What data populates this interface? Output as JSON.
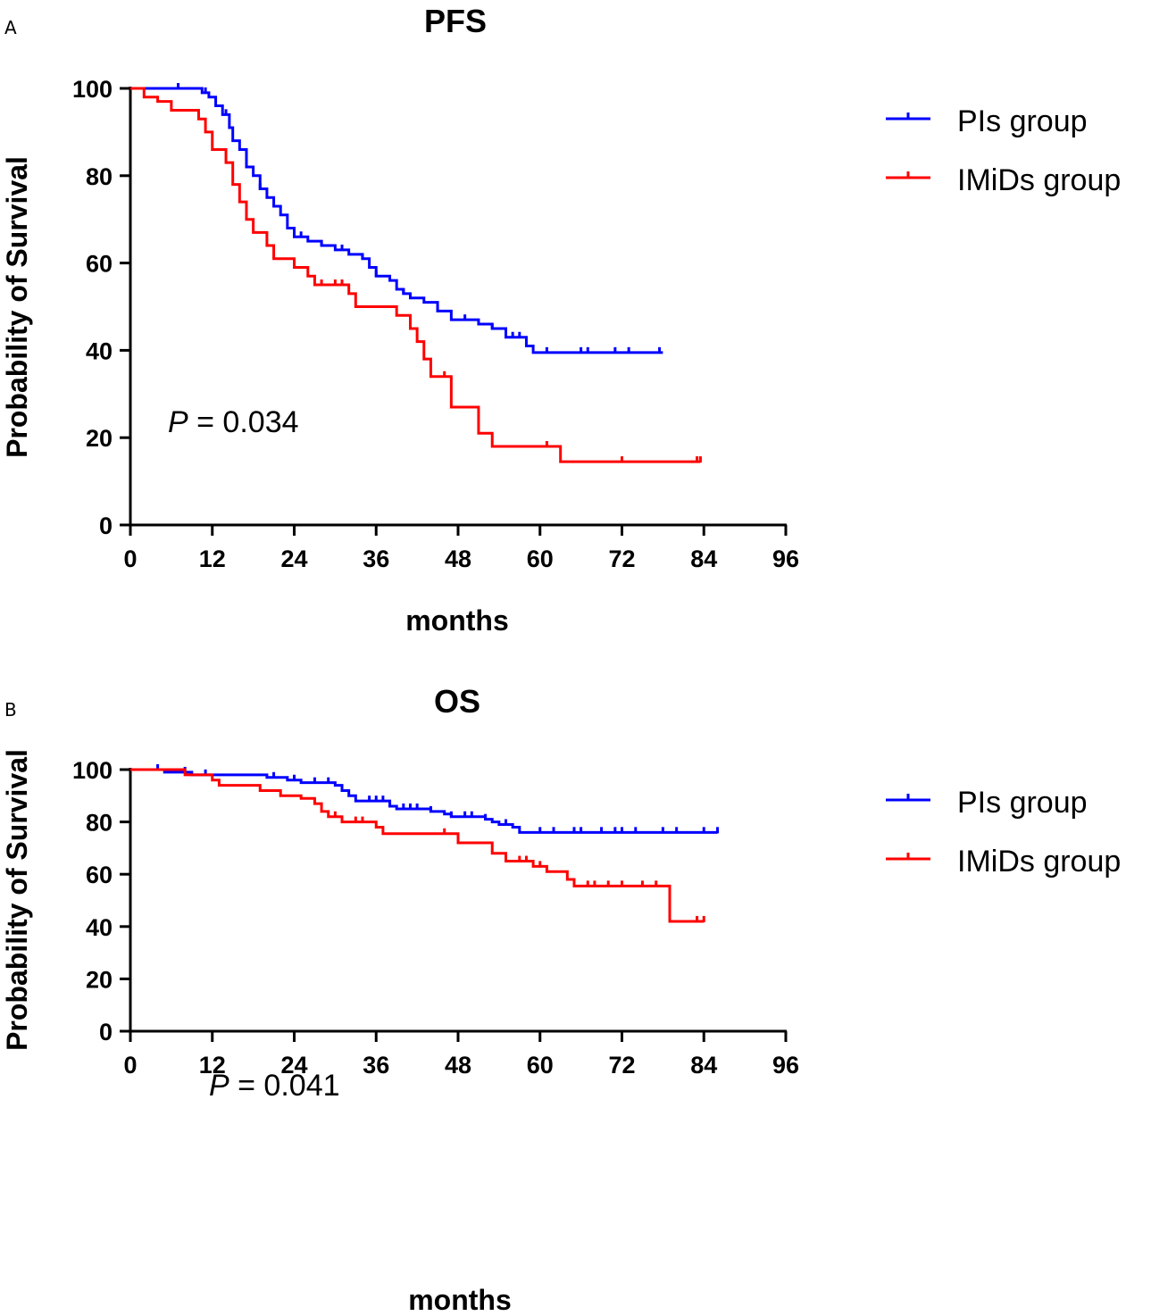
{
  "chart_data": [
    {
      "panel": "A",
      "type": "line",
      "title": "PFS",
      "xlabel": "months",
      "ylabel": "Probability of Survival",
      "xlim": [
        0,
        96
      ],
      "ylim": [
        0,
        100
      ],
      "xticks": [
        0,
        12,
        24,
        36,
        48,
        60,
        72,
        84,
        96
      ],
      "yticks": [
        0,
        20,
        40,
        60,
        80,
        100
      ],
      "annotation": {
        "italic": "P",
        "text": " = 0.034"
      },
      "series": [
        {
          "name": "PIs group",
          "color": "#0000ff",
          "step_points": [
            [
              0,
              100
            ],
            [
              9.5,
              100
            ],
            [
              10.5,
              99
            ],
            [
              11.5,
              98
            ],
            [
              12.5,
              96
            ],
            [
              13.5,
              94
            ],
            [
              14.5,
              91
            ],
            [
              15,
              88
            ],
            [
              16,
              86
            ],
            [
              17,
              82
            ],
            [
              18,
              80
            ],
            [
              19,
              77
            ],
            [
              20,
              75
            ],
            [
              21,
              73
            ],
            [
              22,
              71
            ],
            [
              23,
              68
            ],
            [
              24,
              66
            ],
            [
              26,
              65
            ],
            [
              28,
              64
            ],
            [
              30,
              63
            ],
            [
              32,
              62
            ],
            [
              34,
              61
            ],
            [
              35,
              59
            ],
            [
              36,
              57
            ],
            [
              38,
              56
            ],
            [
              39,
              54
            ],
            [
              40,
              53
            ],
            [
              41,
              52
            ],
            [
              43,
              51
            ],
            [
              45,
              49
            ],
            [
              47,
              47
            ],
            [
              51,
              46
            ],
            [
              53,
              45
            ],
            [
              55,
              43
            ],
            [
              58,
              41
            ],
            [
              59,
              39.5
            ],
            [
              78,
              39.5
            ]
          ],
          "censor_x": [
            7,
            11,
            14,
            19,
            25,
            28,
            31,
            34,
            36,
            40,
            45,
            49,
            53,
            56,
            57,
            61,
            66,
            67,
            71,
            73,
            77.5
          ]
        },
        {
          "name": "IMiDs group",
          "color": "#ff0000",
          "step_points": [
            [
              0,
              100
            ],
            [
              2,
              98
            ],
            [
              4,
              97
            ],
            [
              6,
              95
            ],
            [
              10,
              93
            ],
            [
              11,
              90
            ],
            [
              12,
              86
            ],
            [
              14,
              83
            ],
            [
              15,
              78
            ],
            [
              16,
              74
            ],
            [
              17,
              70
            ],
            [
              18,
              67
            ],
            [
              20,
              64
            ],
            [
              21,
              61
            ],
            [
              24,
              59
            ],
            [
              26,
              57
            ],
            [
              27,
              55
            ],
            [
              32,
              53
            ],
            [
              33,
              50
            ],
            [
              39,
              48
            ],
            [
              41,
              45
            ],
            [
              42,
              42
            ],
            [
              43,
              38
            ],
            [
              44,
              34
            ],
            [
              47,
              27
            ],
            [
              51,
              21
            ],
            [
              53,
              18
            ],
            [
              62,
              18
            ],
            [
              63,
              14.5
            ],
            [
              83.5,
              14.5
            ]
          ],
          "censor_x": [
            28,
            30,
            31,
            46,
            61,
            72,
            83,
            83.5
          ]
        }
      ]
    },
    {
      "panel": "B",
      "type": "line",
      "title": "OS",
      "xlabel": "months",
      "ylabel": "Probability of Survival",
      "xlim": [
        0,
        96
      ],
      "ylim": [
        0,
        100
      ],
      "xticks": [
        0,
        12,
        24,
        36,
        48,
        60,
        72,
        84,
        96
      ],
      "yticks": [
        0,
        20,
        40,
        60,
        80,
        100
      ],
      "annotation": {
        "italic": "P",
        "text": " = 0.041"
      },
      "series": [
        {
          "name": "PIs group",
          "color": "#0000ff",
          "step_points": [
            [
              0,
              100
            ],
            [
              5,
              99
            ],
            [
              9,
              98
            ],
            [
              20,
              97
            ],
            [
              23,
              96
            ],
            [
              25,
              95
            ],
            [
              30,
              94
            ],
            [
              31,
              92
            ],
            [
              32,
              90
            ],
            [
              33,
              88
            ],
            [
              38,
              86
            ],
            [
              39,
              85
            ],
            [
              44,
              84
            ],
            [
              46,
              83
            ],
            [
              47,
              82
            ],
            [
              52,
              81
            ],
            [
              53,
              80
            ],
            [
              54,
              79
            ],
            [
              56,
              78
            ],
            [
              57,
              76
            ],
            [
              86,
              76
            ]
          ],
          "censor_x": [
            4,
            8,
            11,
            21,
            24,
            27,
            29,
            31,
            35,
            36,
            37,
            38,
            40,
            41,
            42,
            44,
            47,
            49,
            50,
            52,
            55,
            60,
            62,
            65,
            66,
            69,
            71,
            72,
            74,
            78,
            80,
            84,
            86
          ]
        },
        {
          "name": "IMiDs group",
          "color": "#ff0000",
          "step_points": [
            [
              0,
              100
            ],
            [
              8,
              98
            ],
            [
              12,
              96
            ],
            [
              13,
              94
            ],
            [
              19,
              92
            ],
            [
              22,
              90
            ],
            [
              25,
              89
            ],
            [
              27,
              87
            ],
            [
              28,
              84
            ],
            [
              29,
              82
            ],
            [
              31,
              80
            ],
            [
              36,
              78
            ],
            [
              37,
              75.5
            ],
            [
              47,
              75.5
            ],
            [
              48,
              72
            ],
            [
              53,
              68
            ],
            [
              55,
              65
            ],
            [
              59,
              63
            ],
            [
              61,
              61
            ],
            [
              64,
              58
            ],
            [
              65,
              55.5
            ],
            [
              78,
              55.5
            ],
            [
              79,
              42
            ],
            [
              84,
              42
            ]
          ],
          "censor_x": [
            30,
            33,
            34,
            46,
            57,
            58,
            60,
            67,
            68,
            70,
            72,
            75,
            77,
            83,
            84
          ]
        }
      ]
    }
  ]
}
